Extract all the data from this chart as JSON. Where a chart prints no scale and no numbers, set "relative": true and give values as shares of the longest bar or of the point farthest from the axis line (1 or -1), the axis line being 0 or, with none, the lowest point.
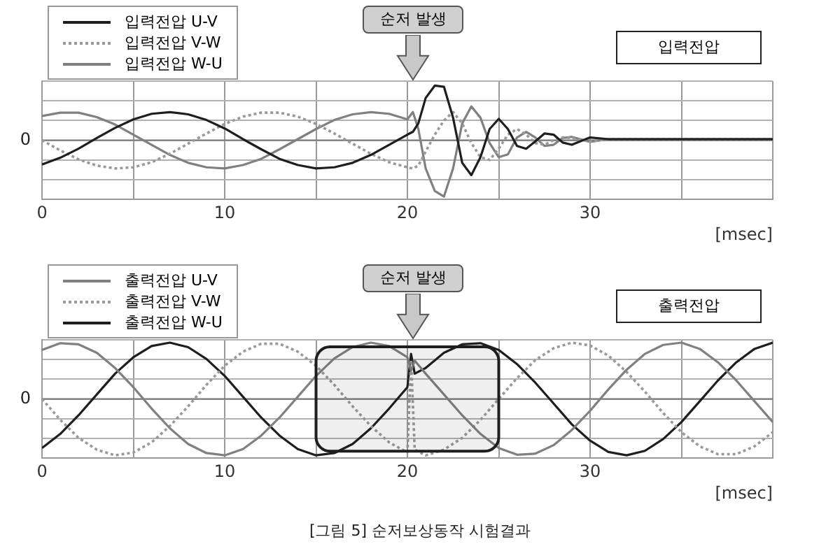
{
  "chart_data": [
    {
      "type": "line",
      "relative": true,
      "xlabel": "[msec]",
      "xlim": [
        0,
        40
      ],
      "xticks": [
        0,
        {
          "value": 5,
          "label": null
        },
        10,
        {
          "value": 15,
          "label": null
        },
        20,
        {
          "value": 25,
          "label": null
        },
        30,
        {
          "value": 35,
          "label": null
        },
        {
          "value": 40,
          "label": null
        }
      ],
      "grid": true,
      "legend": "top left",
      "marker": "none",
      "x": [
        0,
        1,
        2,
        3,
        4,
        5,
        6,
        7,
        8,
        9,
        10,
        11,
        12,
        13,
        14,
        15,
        16,
        17,
        18,
        19,
        20,
        20.3,
        20.6,
        21,
        21.5,
        22,
        22.5,
        23,
        23.5,
        24,
        24.5,
        25,
        25.5,
        26,
        26.5,
        27,
        27.5,
        28,
        28.5,
        29,
        30,
        31,
        32,
        34,
        36,
        38,
        40
      ],
      "series": [
        {
          "name": "입력전압 U-V",
          "color": "#1e1e1e",
          "line_style": "solid",
          "values": [
            -0.43,
            -0.31,
            -0.15,
            0.04,
            0.22,
            0.37,
            0.47,
            0.5,
            0.46,
            0.36,
            0.21,
            0.02,
            -0.16,
            -0.33,
            -0.44,
            -0.5,
            -0.48,
            -0.4,
            -0.26,
            -0.08,
            0.1,
            0.15,
            0.3,
            0.75,
            0.97,
            0.95,
            0.4,
            -0.4,
            -0.62,
            -0.3,
            0.2,
            0.38,
            0.2,
            -0.1,
            -0.15,
            -0.02,
            0.12,
            0.1,
            -0.04,
            -0.08,
            0.05,
            0.02,
            0.02,
            0.02,
            0.02,
            0.02,
            0.02
          ]
        },
        {
          "name": "입력전압 V-W",
          "color": "#999999",
          "line_style": "dotted",
          "values": [
            0,
            -0.18,
            -0.34,
            -0.45,
            -0.5,
            -0.48,
            -0.39,
            -0.24,
            -0.06,
            0.12,
            0.29,
            0.42,
            0.49,
            0.49,
            0.42,
            0.29,
            0.12,
            -0.06,
            -0.24,
            -0.39,
            -0.48,
            -0.5,
            -0.45,
            -0.2,
            0.1,
            0.35,
            0.5,
            0.3,
            -0.05,
            -0.3,
            -0.35,
            -0.15,
            0.1,
            0.2,
            0.1,
            -0.05,
            -0.08,
            0,
            0.05,
            0.04,
            -0.02,
            0.02,
            0.02,
            0.02,
            0.02,
            0.02,
            0.02
          ]
        },
        {
          "name": "입력전압 W-U",
          "color": "#808080",
          "line_style": "solid",
          "values": [
            0.43,
            0.49,
            0.49,
            0.41,
            0.28,
            0.1,
            -0.08,
            -0.26,
            -0.4,
            -0.48,
            -0.5,
            -0.44,
            -0.33,
            -0.16,
            0.02,
            0.2,
            0.36,
            0.46,
            0.5,
            0.47,
            0.37,
            0.5,
            0.2,
            -0.5,
            -0.9,
            -1,
            -0.5,
            0.3,
            0.6,
            0.4,
            -0.05,
            -0.3,
            -0.25,
            0.05,
            0.15,
            0.05,
            -0.1,
            -0.08,
            0.04,
            0.06,
            -0.03,
            0.02,
            0.02,
            0.02,
            0.02,
            0.02,
            0.02
          ]
        }
      ],
      "ref_lines": [
        {
          "axis": "y",
          "value": 0,
          "label": "0"
        }
      ],
      "annotations": [
        "순저 발생",
        "입력전압"
      ]
    },
    {
      "type": "line",
      "relative": true,
      "xlabel": "[msec]",
      "xlim": [
        0,
        40
      ],
      "xticks": [
        0,
        {
          "value": 5,
          "label": null
        },
        10,
        {
          "value": 15,
          "label": null
        },
        20,
        {
          "value": 25,
          "label": null
        },
        30,
        {
          "value": 35,
          "label": null
        },
        {
          "value": 40,
          "label": null
        }
      ],
      "grid": true,
      "legend": "top left",
      "marker": "none",
      "x": [
        0,
        1,
        2,
        3,
        4,
        5,
        6,
        7,
        8,
        9,
        10,
        11,
        12,
        13,
        14,
        15,
        16,
        17,
        18,
        19,
        20,
        20.2,
        20.4,
        21,
        22,
        23,
        24,
        25,
        26,
        27,
        28,
        29,
        30,
        31,
        32,
        33,
        34,
        35,
        36,
        37,
        38,
        39,
        40
      ],
      "series": [
        {
          "name": "출력전압 U-V",
          "color": "#808080",
          "line_style": "solid",
          "values": [
            0.87,
            0.99,
            0.97,
            0.82,
            0.55,
            0.21,
            -0.17,
            -0.52,
            -0.8,
            -0.96,
            -1,
            -0.89,
            -0.65,
            -0.33,
            0.04,
            0.41,
            0.72,
            0.92,
            1,
            0.94,
            0.74,
            0.5,
            0.68,
            0.45,
            0.08,
            -0.29,
            -0.62,
            -0.87,
            -0.99,
            -0.97,
            -0.82,
            -0.55,
            -0.21,
            0.17,
            0.52,
            0.8,
            0.96,
            1,
            0.89,
            0.65,
            0.33,
            -0.04,
            -0.41
          ]
        },
        {
          "name": "출력전압 V-W",
          "color": "#999999",
          "line_style": "dotted",
          "values": [
            0,
            -0.37,
            -0.69,
            -0.9,
            -1,
            -0.95,
            -0.77,
            -0.48,
            -0.13,
            0.25,
            0.59,
            0.84,
            0.98,
            0.98,
            0.84,
            0.59,
            0.25,
            -0.13,
            -0.48,
            -0.77,
            -0.95,
            0.7,
            -0.9,
            -1,
            -0.9,
            -0.69,
            -0.37,
            0,
            0.37,
            0.69,
            0.9,
            1,
            0.95,
            0.77,
            0.48,
            0.13,
            -0.25,
            -0.59,
            -0.84,
            -0.98,
            -0.98,
            -0.84,
            -0.59
          ]
        },
        {
          "name": "출력전압 W-U",
          "color": "#1e1e1e",
          "line_style": "solid",
          "values": [
            -0.87,
            -0.62,
            -0.29,
            0.08,
            0.45,
            0.74,
            0.94,
            1,
            0.92,
            0.71,
            0.41,
            0.04,
            -0.33,
            -0.65,
            -0.89,
            -1,
            -0.96,
            -0.8,
            -0.52,
            -0.17,
            0.21,
            0.8,
            0.45,
            0.55,
            0.82,
            0.97,
            0.99,
            0.87,
            0.62,
            0.29,
            -0.08,
            -0.45,
            -0.74,
            -0.94,
            -1,
            -0.92,
            -0.71,
            -0.41,
            -0.04,
            0.33,
            0.65,
            0.89,
            1
          ]
        }
      ],
      "ref_lines": [
        {
          "axis": "y",
          "value": 0,
          "label": "0"
        }
      ],
      "bands": [
        {
          "axis": "x",
          "from": 15,
          "to": 25,
          "color": "#1e1e1e"
        }
      ],
      "annotations": [
        "순저 발생",
        "출력전압",
        "[그림 5] 순저보상동작 시험결과"
      ]
    }
  ]
}
